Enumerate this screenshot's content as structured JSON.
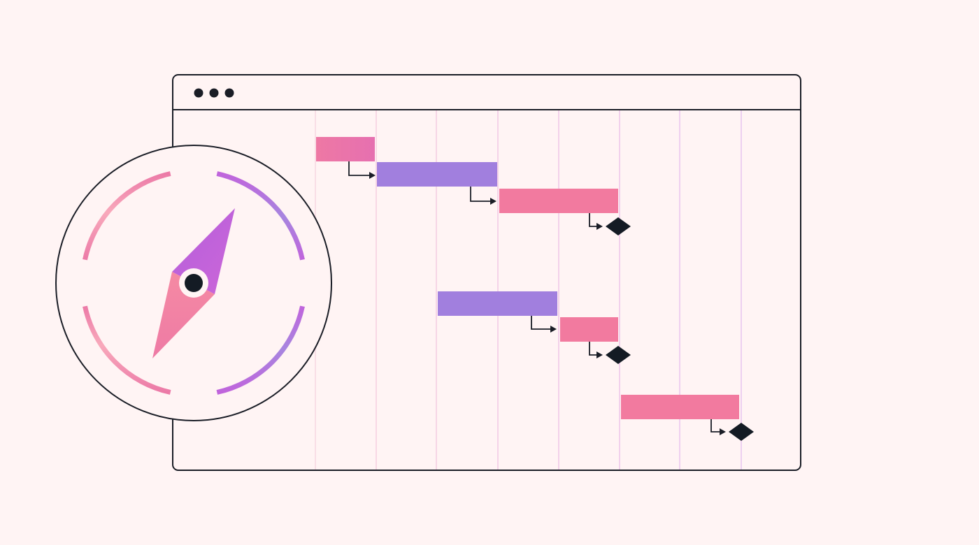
{
  "colors": {
    "background": "#fff4f4",
    "outline": "#1a1d26",
    "pink": "#f27a9f",
    "pink_light": "#f8a4b8",
    "pink_gradient_start": "#e87aa8",
    "purple": "#a07fdf",
    "magenta": "#c266dc",
    "milestone": "#141b24"
  },
  "window": {
    "controls": [
      "dot",
      "dot",
      "dot"
    ]
  },
  "gantt": {
    "columns": 8,
    "tasks": [
      {
        "group": 1,
        "start": 0,
        "duration": 1,
        "color": "pink_gradient"
      },
      {
        "group": 1,
        "start": 1,
        "duration": 2,
        "color": "purple"
      },
      {
        "group": 1,
        "start": 3,
        "duration": 2,
        "color": "pink",
        "milestone": true
      },
      {
        "group": 2,
        "start": 2,
        "duration": 2,
        "color": "purple"
      },
      {
        "group": 2,
        "start": 4,
        "duration": 1,
        "color": "pink",
        "milestone": true
      },
      {
        "group": 3,
        "start": 5,
        "duration": 2,
        "color": "pink",
        "milestone": true
      }
    ]
  },
  "compass": {
    "icon": "compass-icon"
  }
}
